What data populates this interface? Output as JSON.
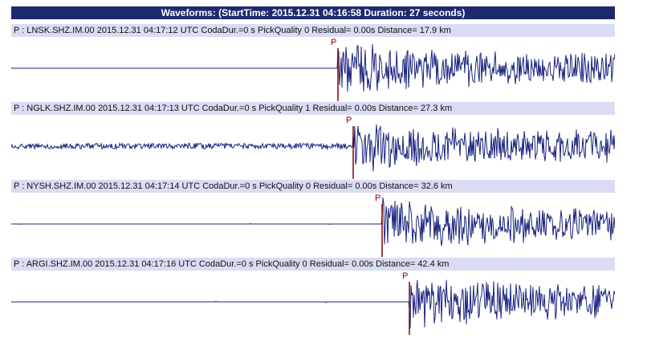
{
  "window": {
    "title": "Waveforms: (StartTime: 2015.12.31 04:16:58 Duration: 27 seconds)"
  },
  "colors": {
    "title_bg": "#1f2a6e",
    "header_bg": "#d9dcf3",
    "waveform": "#1a237e",
    "pick_marker": "#8b0000"
  },
  "traces": [
    {
      "header": "P : LNSK.SHZ.IM.00 2015.12.31 04:17:12 UTC CodaDur.=0 s PickQuality 0 Residual= 0.00s Distance= 17.9 km",
      "pick_label": "P",
      "pick_time_s": 14.6,
      "pre_noise": "flat"
    },
    {
      "header": "P : NGLK.SHZ.IM.00 2015.12.31 04:17:13 UTC CodaDur.=0 s PickQuality 1 Residual= 0.00s Distance= 27.3 km",
      "pick_label": "P",
      "pick_time_s": 15.3,
      "pre_noise": "noisy"
    },
    {
      "header": "P : NYSH.SHZ.IM.00 2015.12.31 04:17:14 UTC CodaDur.=0 s PickQuality 0 Residual= 0.00s Distance= 32.6 km",
      "pick_label": "P",
      "pick_time_s": 16.6,
      "pre_noise": "flat"
    },
    {
      "header": "P : ARGI.SHZ.IM.00 2015.12.31 04:17:16 UTC CodaDur.=0 s PickQuality 0 Residual= 0.00s Distance= 42.4 km",
      "pick_label": "P",
      "pick_time_s": 17.8,
      "pre_noise": "flat"
    }
  ],
  "duration_s": 27
}
